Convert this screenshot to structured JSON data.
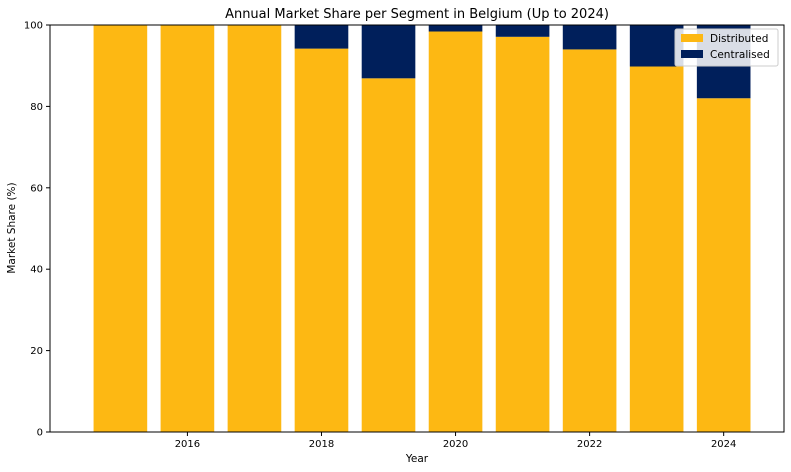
{
  "chart_data": {
    "type": "bar",
    "stacked": true,
    "title": "Annual Market Share per Segment in Belgium (Up to 2024)",
    "xlabel": "Year",
    "ylabel": "Market Share (%)",
    "categories": [
      2015,
      2016,
      2017,
      2018,
      2019,
      2020,
      2021,
      2022,
      2023,
      2024
    ],
    "x_ticks": [
      2016,
      2018,
      2020,
      2022,
      2024
    ],
    "xlim": [
      2013.95,
      2024.9
    ],
    "ylim": [
      0,
      100
    ],
    "y_ticks": [
      0,
      20,
      40,
      60,
      80,
      100
    ],
    "grid": false,
    "legend_position": "top-right",
    "series": [
      {
        "name": "Distributed",
        "color": "#FDB813",
        "values": [
          100,
          100,
          100,
          94.2,
          86.9,
          98.4,
          97.1,
          94.0,
          89.8,
          82.0
        ]
      },
      {
        "name": "Centralised",
        "color": "#001F5B",
        "values": [
          0,
          0,
          0,
          5.8,
          13.1,
          1.6,
          2.9,
          6.0,
          10.2,
          18.0
        ]
      }
    ]
  }
}
